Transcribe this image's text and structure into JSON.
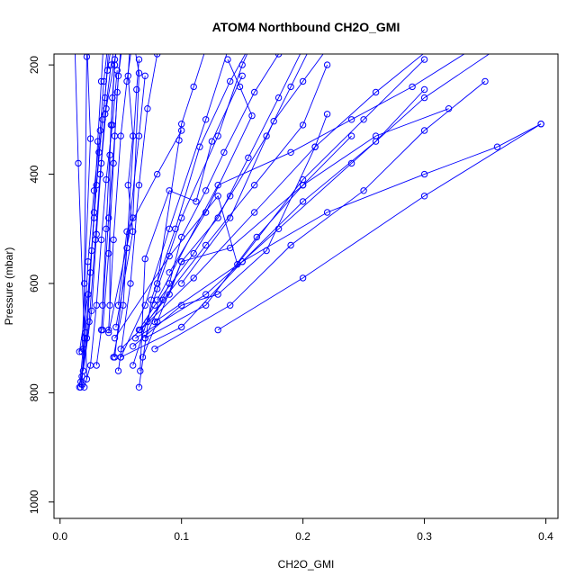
{
  "chart_data": {
    "type": "line",
    "title": "ATOM4 Northbound CH2O_GMI",
    "xlabel": "CH2O_GMI",
    "ylabel": "Pressure (mbar)",
    "xlim": [
      -0.005,
      0.41
    ],
    "ylim": [
      1030,
      180
    ],
    "x_ticks": [
      0.0,
      0.1,
      0.2,
      0.3,
      0.4
    ],
    "x_tick_labels": [
      "0.0",
      "0.1",
      "0.2",
      "0.3",
      "0.4"
    ],
    "y_ticks": [
      200,
      400,
      600,
      800,
      1000
    ],
    "y_tick_labels": [
      "200",
      "400",
      "600",
      "800",
      "1000"
    ],
    "color": "#0000ff",
    "legend": "none",
    "grid": false,
    "series": [
      {
        "points": [
          [
            0.016,
            790
          ],
          [
            0.019,
            720
          ],
          [
            0.023,
            560
          ],
          [
            0.028,
            430
          ],
          [
            0.033,
            320
          ],
          [
            0.036,
            230
          ],
          [
            0.04,
            150
          ]
        ]
      },
      {
        "points": [
          [
            0.017,
            780
          ],
          [
            0.022,
            700
          ],
          [
            0.026,
            540
          ],
          [
            0.03,
            420
          ],
          [
            0.035,
            300
          ],
          [
            0.039,
            210
          ],
          [
            0.044,
            140
          ]
        ]
      },
      {
        "points": [
          [
            0.018,
            770
          ],
          [
            0.024,
            670
          ],
          [
            0.029,
            520
          ],
          [
            0.033,
            400
          ],
          [
            0.037,
            290
          ],
          [
            0.042,
            200
          ],
          [
            0.046,
            150
          ]
        ]
      },
      {
        "points": [
          [
            0.019,
            760
          ],
          [
            0.026,
            650
          ],
          [
            0.03,
            510
          ],
          [
            0.034,
            380
          ],
          [
            0.038,
            280
          ],
          [
            0.045,
            190
          ],
          [
            0.05,
            140
          ]
        ]
      },
      {
        "points": [
          [
            0.016,
            725
          ],
          [
            0.023,
            620
          ],
          [
            0.028,
            480
          ],
          [
            0.032,
            360
          ],
          [
            0.037,
            260
          ],
          [
            0.04,
            170
          ]
        ]
      },
      {
        "points": [
          [
            0.017,
            790
          ],
          [
            0.021,
            690
          ],
          [
            0.025,
            580
          ],
          [
            0.028,
            470
          ],
          [
            0.031,
            340
          ],
          [
            0.034,
            230
          ],
          [
            0.036,
            150
          ]
        ]
      },
      {
        "points": [
          [
            0.02,
            790
          ],
          [
            0.025,
            750
          ],
          [
            0.03,
            640
          ],
          [
            0.034,
            520
          ],
          [
            0.038,
            410
          ],
          [
            0.043,
            310
          ],
          [
            0.047,
            210
          ]
        ]
      },
      {
        "points": [
          [
            0.018,
            785
          ],
          [
            0.02,
            700
          ],
          [
            0.015,
            380
          ],
          [
            0.012,
            150
          ]
        ]
      },
      {
        "points": [
          [
            0.022,
            775
          ],
          [
            0.02,
            600
          ],
          [
            0.022,
            185
          ],
          [
            0.021,
            140
          ]
        ]
      },
      {
        "points": [
          [
            0.018,
            725
          ],
          [
            0.025,
            335
          ],
          [
            0.022,
            150
          ]
        ]
      },
      {
        "points": [
          [
            0.03,
            750
          ],
          [
            0.034,
            685
          ],
          [
            0.04,
            480
          ],
          [
            0.045,
            330
          ],
          [
            0.048,
            220
          ],
          [
            0.052,
            150
          ]
        ]
      },
      {
        "points": [
          [
            0.035,
            685
          ],
          [
            0.04,
            545
          ],
          [
            0.044,
            380
          ],
          [
            0.047,
            250
          ],
          [
            0.05,
            170
          ]
        ]
      },
      {
        "points": [
          [
            0.04,
            685
          ],
          [
            0.044,
            520
          ],
          [
            0.05,
            330
          ],
          [
            0.055,
            230
          ],
          [
            0.06,
            150
          ]
        ]
      },
      {
        "points": [
          [
            0.035,
            640
          ],
          [
            0.038,
            500
          ],
          [
            0.042,
            310
          ],
          [
            0.045,
            200
          ]
        ]
      },
      {
        "points": [
          [
            0.045,
            735
          ],
          [
            0.055,
            535
          ],
          [
            0.065,
            330
          ],
          [
            0.07,
            220
          ]
        ]
      },
      {
        "points": [
          [
            0.048,
            760
          ],
          [
            0.058,
            600
          ],
          [
            0.065,
            420
          ],
          [
            0.072,
            280
          ],
          [
            0.08,
            180
          ]
        ]
      },
      {
        "points": [
          [
            0.044,
            735
          ],
          [
            0.052,
            640
          ],
          [
            0.063,
            245
          ],
          [
            0.065,
            190
          ]
        ]
      },
      {
        "points": [
          [
            0.046,
            680
          ],
          [
            0.06,
            505
          ],
          [
            0.056,
            420
          ],
          [
            0.06,
            330
          ],
          [
            0.056,
            220
          ],
          [
            0.058,
            150
          ]
        ]
      },
      {
        "points": [
          [
            0.048,
            640
          ],
          [
            0.055,
            505
          ],
          [
            0.08,
            400
          ],
          [
            0.1,
            320
          ]
        ]
      },
      {
        "points": [
          [
            0.05,
            735
          ],
          [
            0.07,
            640
          ],
          [
            0.09,
            500
          ],
          [
            0.12,
            300
          ],
          [
            0.14,
            160
          ]
        ]
      },
      {
        "points": [
          [
            0.06,
            750
          ],
          [
            0.08,
            610
          ],
          [
            0.1,
            480
          ],
          [
            0.13,
            330
          ],
          [
            0.15,
            200
          ],
          [
            0.16,
            150
          ]
        ]
      },
      {
        "points": [
          [
            0.065,
            790
          ],
          [
            0.075,
            630
          ],
          [
            0.095,
            500
          ],
          [
            0.115,
            350
          ],
          [
            0.14,
            230
          ],
          [
            0.16,
            150
          ]
        ]
      },
      {
        "points": [
          [
            0.066,
            760
          ],
          [
            0.07,
            555
          ],
          [
            0.09,
            430
          ],
          [
            0.112,
            450
          ],
          [
            0.125,
            340
          ],
          [
            0.15,
            220
          ]
        ]
      },
      {
        "points": [
          [
            0.068,
            735
          ],
          [
            0.08,
            670
          ],
          [
            0.1,
            560
          ],
          [
            0.13,
            480
          ],
          [
            0.155,
            370
          ],
          [
            0.18,
            260
          ],
          [
            0.2,
            170
          ]
        ]
      },
      {
        "points": [
          [
            0.07,
            700
          ],
          [
            0.09,
            600
          ],
          [
            0.1,
            515
          ],
          [
            0.12,
            430
          ],
          [
            0.135,
            360
          ],
          [
            0.16,
            250
          ],
          [
            0.18,
            180
          ]
        ]
      },
      {
        "points": [
          [
            0.065,
            685
          ],
          [
            0.078,
            640
          ],
          [
            0.11,
            545
          ],
          [
            0.14,
            440
          ],
          [
            0.17,
            330
          ],
          [
            0.19,
            240
          ],
          [
            0.21,
            150
          ]
        ]
      },
      {
        "points": [
          [
            0.066,
            685
          ],
          [
            0.09,
            620
          ],
          [
            0.1,
            560
          ],
          [
            0.14,
            535
          ],
          [
            0.2,
            420
          ],
          [
            0.24,
            330
          ]
        ]
      },
      {
        "points": [
          [
            0.072,
            670
          ],
          [
            0.085,
            630
          ],
          [
            0.12,
            530
          ],
          [
            0.16,
            420
          ],
          [
            0.2,
            310
          ],
          [
            0.22,
            200
          ]
        ]
      },
      {
        "points": [
          [
            0.06,
            715
          ],
          [
            0.1,
            640
          ],
          [
            0.13,
            620
          ],
          [
            0.17,
            540
          ],
          [
            0.21,
            350
          ],
          [
            0.22,
            290
          ]
        ]
      },
      {
        "points": [
          [
            0.05,
            735
          ],
          [
            0.1,
            680
          ],
          [
            0.15,
            560
          ],
          [
            0.2,
            450
          ],
          [
            0.26,
            340
          ],
          [
            0.3,
            245
          ]
        ]
      },
      {
        "points": [
          [
            0.07,
            700
          ],
          [
            0.12,
            640
          ],
          [
            0.162,
            515
          ],
          [
            0.2,
            420
          ],
          [
            0.26,
            330
          ],
          [
            0.32,
            280
          ]
        ]
      },
      {
        "points": [
          [
            0.078,
            670
          ],
          [
            0.15,
            560
          ],
          [
            0.22,
            470
          ],
          [
            0.3,
            400
          ],
          [
            0.36,
            350
          ],
          [
            0.396,
            308
          ]
        ]
      },
      {
        "points": [
          [
            0.13,
            685
          ],
          [
            0.2,
            590
          ],
          [
            0.3,
            440
          ],
          [
            0.396,
            308
          ]
        ]
      },
      {
        "points": [
          [
            0.078,
            720
          ],
          [
            0.14,
            640
          ],
          [
            0.19,
            530
          ],
          [
            0.25,
            430
          ],
          [
            0.3,
            320
          ],
          [
            0.35,
            230
          ]
        ]
      },
      {
        "points": [
          [
            0.062,
            700
          ],
          [
            0.12,
            620
          ],
          [
            0.18,
            500
          ],
          [
            0.24,
            380
          ],
          [
            0.3,
            260
          ],
          [
            0.36,
            170
          ]
        ]
      },
      {
        "points": [
          [
            0.1,
            600
          ],
          [
            0.14,
            480
          ],
          [
            0.176,
            303
          ],
          [
            0.2,
            230
          ],
          [
            0.22,
            170
          ]
        ]
      },
      {
        "points": [
          [
            0.09,
            580
          ],
          [
            0.12,
            470
          ],
          [
            0.158,
            293
          ],
          [
            0.148,
            240
          ],
          [
            0.138,
            190
          ]
        ]
      },
      {
        "points": [
          [
            0.08,
            600
          ],
          [
            0.098,
            338
          ],
          [
            0.1,
            308
          ],
          [
            0.11,
            240
          ],
          [
            0.12,
            170
          ]
        ]
      },
      {
        "points": [
          [
            0.045,
            700
          ],
          [
            0.09,
            550
          ],
          [
            0.13,
            440
          ],
          [
            0.146,
            565
          ],
          [
            0.2,
            410
          ],
          [
            0.25,
            300
          ],
          [
            0.3,
            190
          ]
        ]
      },
      {
        "points": [
          [
            0.08,
            630
          ],
          [
            0.13,
            420
          ],
          [
            0.19,
            360
          ],
          [
            0.24,
            300
          ],
          [
            0.29,
            240
          ],
          [
            0.34,
            170
          ]
        ]
      },
      {
        "points": [
          [
            0.05,
            720
          ],
          [
            0.11,
            590
          ],
          [
            0.16,
            470
          ],
          [
            0.21,
            350
          ],
          [
            0.26,
            250
          ],
          [
            0.31,
            160
          ]
        ]
      },
      {
        "points": [
          [
            0.04,
            690
          ],
          [
            0.06,
            480
          ],
          [
            0.065,
            215
          ],
          [
            0.06,
            150
          ]
        ]
      },
      {
        "points": [
          [
            0.041,
            640
          ],
          [
            0.041,
            365
          ],
          [
            0.043,
            260
          ],
          [
            0.046,
            170
          ]
        ]
      }
    ]
  }
}
